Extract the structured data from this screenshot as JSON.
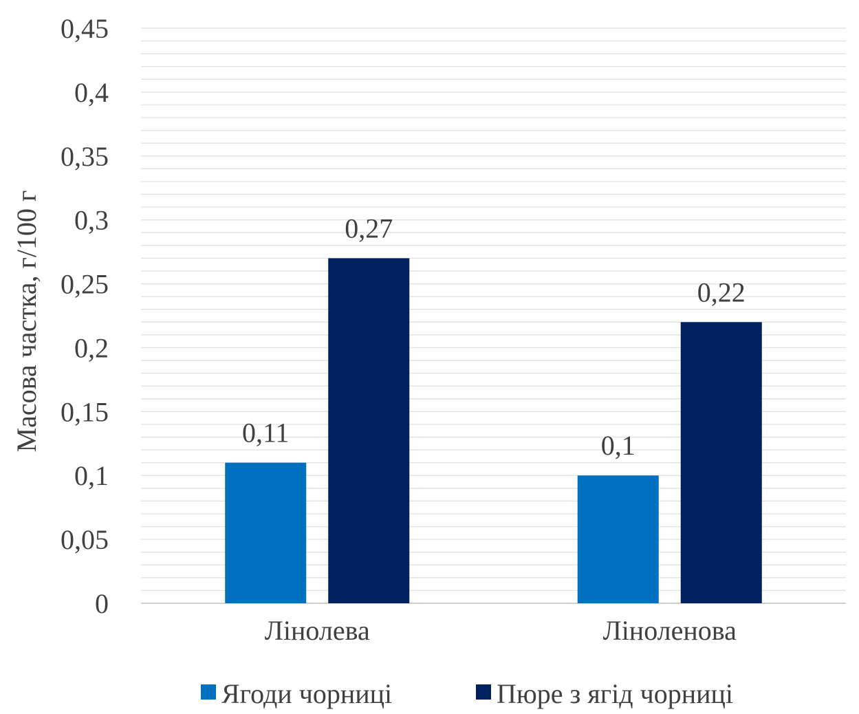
{
  "chart_data": {
    "type": "bar",
    "title": "",
    "xlabel": "",
    "ylabel": "Масова частка, г/100 г",
    "categories": [
      "Лінолева",
      "Ліноленова"
    ],
    "series": [
      {
        "name": "Ягоди чорниці",
        "values": [
          0.11,
          0.1
        ],
        "labels": [
          "0,11",
          "0,1"
        ],
        "color": "#0070C0"
      },
      {
        "name": "Пюре з ягід чорниці",
        "values": [
          0.27,
          0.22
        ],
        "labels": [
          "0,27",
          "0,22"
        ],
        "color": "#002060"
      }
    ],
    "ylim": [
      0,
      0.45
    ],
    "yticks": [
      0,
      0.05,
      0.1,
      0.15,
      0.2,
      0.25,
      0.3,
      0.35,
      0.4,
      0.45
    ],
    "ytick_labels": [
      "0",
      "0,05",
      "0,1",
      "0,15",
      "0,2",
      "0,25",
      "0,3",
      "0,35",
      "0,4",
      "0,45"
    ],
    "grid": true,
    "legend_position": "bottom"
  }
}
